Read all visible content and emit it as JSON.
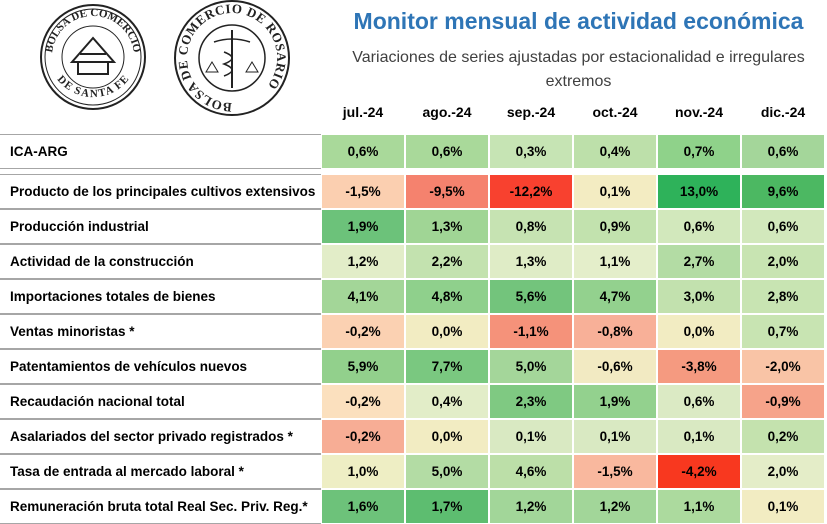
{
  "logos": [
    {
      "top": "BOLSA DE COMERCIO",
      "bottom": "DE SANTA FE"
    },
    {
      "text": "BOLSA DE COMERCIO DE ROSARIO"
    }
  ],
  "header": {
    "title": "Monitor mensual de actividad económica",
    "subtitle": "Variaciones de series ajustadas por estacionalidad e irregulares extremos"
  },
  "table": {
    "columns": [
      "jul.-24",
      "ago.-24",
      "sep.-24",
      "oct.-24",
      "nov.-24",
      "dic.-24"
    ],
    "rows": [
      {
        "label": "ICA-ARG",
        "cells": [
          "0,6%",
          "0,6%",
          "0,3%",
          "0,4%",
          "0,7%",
          "0,6%"
        ],
        "colors": [
          "#a9d99a",
          "#a9d99a",
          "#c6e4b4",
          "#bde0aa",
          "#8fd28a",
          "#a4d69a"
        ]
      },
      {
        "label": "Producto de los principales cultivos extensivos",
        "cells": [
          "-1,5%",
          "-9,5%",
          "-12,2%",
          "0,1%",
          "13,0%",
          "9,6%"
        ],
        "colors": [
          "#fbcfb0",
          "#f5826e",
          "#f8412f",
          "#f3ecc2",
          "#2eb25a",
          "#4cb862"
        ]
      },
      {
        "label": "Producción industrial",
        "cells": [
          "1,9%",
          "1,3%",
          "0,8%",
          "0,9%",
          "0,6%",
          "0,6%"
        ],
        "colors": [
          "#6cc27a",
          "#a0d595",
          "#c6e3b2",
          "#c2e2ae",
          "#d2e8bc",
          "#d2e8bc"
        ]
      },
      {
        "label": "Actividad de la construcción",
        "cells": [
          "1,2%",
          "2,2%",
          "1,3%",
          "1,1%",
          "2,7%",
          "2,0%"
        ],
        "colors": [
          "#e2edc8",
          "#c3e2af",
          "#dfecc6",
          "#e4eeca",
          "#b3dca4",
          "#c8e4b2"
        ]
      },
      {
        "label": "Importaciones totales de bienes",
        "cells": [
          "4,1%",
          "4,8%",
          "5,6%",
          "4,7%",
          "3,0%",
          "2,8%"
        ],
        "colors": [
          "#a3d698",
          "#8fd08c",
          "#73c47c",
          "#93d18e",
          "#c2e1ae",
          "#c8e4b2"
        ]
      },
      {
        "label": "Ventas minoristas *",
        "cells": [
          "-0,2%",
          "0,0%",
          "-1,1%",
          "-0,8%",
          "0,0%",
          "0,7%"
        ],
        "colors": [
          "#fbd1b2",
          "#f2ecc2",
          "#f5927a",
          "#f8b098",
          "#f2ecc2",
          "#c8e4b2"
        ]
      },
      {
        "label": "Patentamientos de vehículos nuevos",
        "cells": [
          "5,9%",
          "7,7%",
          "5,0%",
          "-0,6%",
          "-3,8%",
          "-2,0%"
        ],
        "colors": [
          "#92d08c",
          "#7ac880",
          "#a4d69a",
          "#f2eac2",
          "#f59a80",
          "#f9c4a6"
        ]
      },
      {
        "label": "Recaudación nacional total",
        "cells": [
          "-0,2%",
          "0,4%",
          "2,3%",
          "1,9%",
          "0,6%",
          "-0,9%"
        ],
        "colors": [
          "#fbe0be",
          "#e2edc8",
          "#7fc982",
          "#93d18e",
          "#dbeac4",
          "#f6a38a"
        ]
      },
      {
        "label": "Asalariados del sector privado registrados *",
        "cells": [
          "-0,2%",
          "0,0%",
          "0,1%",
          "0,1%",
          "0,1%",
          "0,2%"
        ],
        "colors": [
          "#f7ad95",
          "#f2ecc2",
          "#d9e9c2",
          "#d9e9c2",
          "#d9e9c2",
          "#c4e2ae"
        ]
      },
      {
        "label": "Tasa de entrada al mercado laboral *",
        "cells": [
          "1,0%",
          "5,0%",
          "4,6%",
          "-1,5%",
          "-4,2%",
          "2,0%"
        ],
        "colors": [
          "#eeeec4",
          "#b3dca4",
          "#bcdfa8",
          "#f9b89e",
          "#f8381f",
          "#e4edc8"
        ]
      },
      {
        "label": "Remuneración bruta total Real Sec. Priv. Reg.*",
        "cells": [
          "1,6%",
          "1,7%",
          "1,2%",
          "1,2%",
          "1,1%",
          "0,1%"
        ],
        "colors": [
          "#6dc27a",
          "#5dbd70",
          "#a2d699",
          "#a2d699",
          "#acda9e",
          "#f2ecc2"
        ]
      }
    ]
  }
}
